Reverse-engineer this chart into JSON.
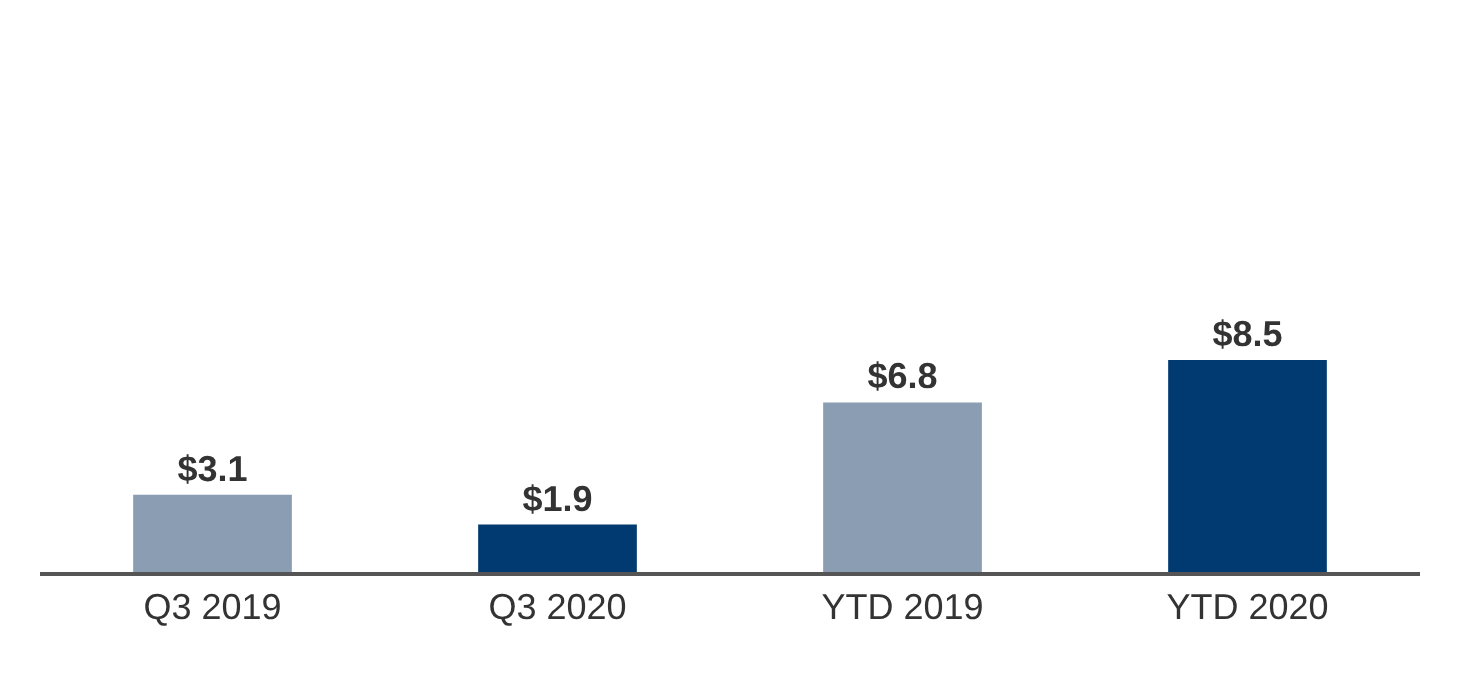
{
  "chart_data": {
    "type": "bar",
    "data_labels": true,
    "categories": [
      "Q3 2019",
      "Q3 2020",
      "YTD 2019",
      "YTD 2020"
    ],
    "values": [
      3.1,
      1.9,
      6.8,
      8.5
    ],
    "value_labels": [
      "$3.1",
      "$1.9",
      "$6.8",
      "$8.5"
    ],
    "colors": [
      "#8a9db3",
      "#003a70",
      "#8a9db3",
      "#003a70"
    ]
  }
}
